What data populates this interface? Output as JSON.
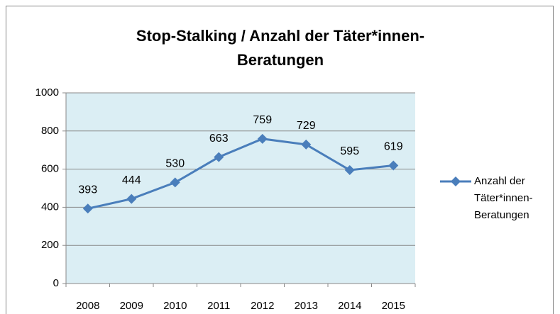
{
  "chart_data": {
    "type": "line",
    "title": "Stop-Stalking / Anzahl der Täter*innen-Beratungen",
    "categories": [
      "2008",
      "2009",
      "2010",
      "2011",
      "2012",
      "2013",
      "2014",
      "2015"
    ],
    "series": [
      {
        "name": "Anzahl der Täter*innen-Beratungen",
        "color": "#4a7ebb",
        "values": [
          393,
          444,
          530,
          663,
          759,
          729,
          595,
          619
        ]
      }
    ],
    "ylim": [
      0,
      1000
    ],
    "yticks": [
      0,
      200,
      400,
      600,
      800,
      1000
    ],
    "grid": true,
    "legend": "right"
  }
}
